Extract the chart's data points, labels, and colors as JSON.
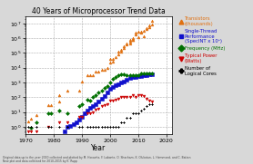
{
  "title": "40 Years of Microprocessor Trend Data",
  "xlabel": "Year",
  "xlim": [
    1970,
    2022
  ],
  "ylim_log": [
    0.3,
    30000000.0
  ],
  "xticks": [
    1970,
    1980,
    1990,
    2000,
    2010,
    2020
  ],
  "footnote1": "Original data up to the year 2010 collected and plotted by M. Horowitz, F. Labonte, O. Shacham, K. Olukotun, L. Hammond, and C. Batten",
  "footnote2": "New plot and data collected for 2010-2015 by K. Rupp",
  "bg_color": "#D8D8D8",
  "series": {
    "transistors": {
      "label": "Transistors\n(thousands)",
      "color": "#E07010",
      "marker": "^",
      "data_x": [
        1971,
        1972,
        1974,
        1978,
        1979,
        1982,
        1982,
        1985,
        1989,
        1990,
        1992,
        1993,
        1994,
        1995,
        1996,
        1997,
        1998,
        1999,
        2000,
        2000,
        2001,
        2001,
        2002,
        2003,
        2003,
        2004,
        2004,
        2005,
        2005,
        2006,
        2006,
        2007,
        2007,
        2007,
        2008,
        2008,
        2008,
        2009,
        2009,
        2010,
        2010,
        2011,
        2011,
        2012,
        2012,
        2013,
        2013,
        2014,
        2014,
        2015,
        2015
      ],
      "data_y": [
        2.3,
        3.5,
        6,
        29,
        29,
        55,
        134,
        275,
        275,
        1200,
        3100,
        3100,
        3100,
        5500,
        5500,
        7500,
        7500,
        9500,
        24000,
        42000,
        42000,
        25000,
        55000,
        125000,
        77000,
        125000,
        169000,
        228000,
        291000,
        376000,
        410000,
        582000,
        742000,
        410000,
        731000,
        820000,
        1000000,
        1900000,
        2300000,
        1170000,
        2600000,
        2600000,
        2300000,
        3100000,
        1400000,
        5000000,
        4310000,
        7200000,
        5560000,
        8000000,
        15000000
      ]
    },
    "singlethread": {
      "label": "Single-Thread\nPerformance\n(SpecINT x 10³)",
      "color": "#1010CC",
      "marker": "s",
      "data_x": [
        1978,
        1980,
        1982,
        1984,
        1985,
        1986,
        1987,
        1988,
        1989,
        1990,
        1991,
        1992,
        1993,
        1994,
        1995,
        1996,
        1997,
        1998,
        1999,
        2000,
        2001,
        2002,
        2003,
        2004,
        2005,
        2006,
        2007,
        2008,
        2009,
        2010,
        2011,
        2012,
        2013,
        2014,
        2015
      ],
      "data_y": [
        0.04,
        0.08,
        0.15,
        0.5,
        1,
        1.2,
        1.5,
        2,
        3,
        5,
        8,
        12,
        18,
        25,
        35,
        50,
        80,
        120,
        200,
        350,
        500,
        650,
        800,
        1000,
        1200,
        1500,
        2000,
        2200,
        2500,
        2700,
        2800,
        3000,
        3200,
        3400,
        3500
      ]
    },
    "frequency": {
      "label": "Frequency (MHz)",
      "color": "#007000",
      "marker": "D",
      "data_x": [
        1971,
        1972,
        1974,
        1978,
        1979,
        1982,
        1985,
        1989,
        1990,
        1992,
        1993,
        1994,
        1995,
        1996,
        1997,
        1998,
        1999,
        2000,
        2001,
        2002,
        2003,
        2004,
        2005,
        2006,
        2007,
        2008,
        2009,
        2010,
        2011,
        2012,
        2013,
        2014,
        2015
      ],
      "data_y": [
        0.108,
        0.8,
        2,
        8,
        8,
        12,
        8,
        25,
        33,
        66,
        60,
        100,
        133,
        200,
        300,
        450,
        600,
        1000,
        1700,
        2200,
        3060,
        3800,
        3800,
        3000,
        3000,
        3200,
        2930,
        3330,
        3900,
        3900,
        4000,
        4000,
        4200
      ]
    },
    "power": {
      "label": "Typical Power\n(Watts)",
      "color": "#CC0000",
      "marker": "v",
      "data_x": [
        1971,
        1972,
        1974,
        1978,
        1982,
        1985,
        1989,
        1990,
        1992,
        1993,
        1994,
        1995,
        1996,
        1997,
        1998,
        1999,
        2000,
        2001,
        2002,
        2003,
        2004,
        2005,
        2006,
        2007,
        2008,
        2009,
        2010,
        2011,
        2012,
        2013,
        2014,
        2015
      ],
      "data_y": [
        0.5,
        0.5,
        0.5,
        1,
        2,
        2,
        5,
        5,
        8,
        8,
        10,
        15,
        17,
        25,
        30,
        35,
        60,
        60,
        70,
        80,
        100,
        110,
        100,
        105,
        130,
        100,
        140,
        130,
        120,
        84,
        60,
        55
      ]
    },
    "cores": {
      "label": "Number of\nLogical Cores",
      "color": "#000000",
      "marker": "P",
      "data_x": [
        1971,
        1972,
        1974,
        1978,
        1979,
        1982,
        1985,
        1989,
        1990,
        1992,
        1993,
        1994,
        1995,
        1996,
        1997,
        1998,
        1999,
        2000,
        2001,
        2002,
        2003,
        2004,
        2005,
        2006,
        2007,
        2008,
        2009,
        2010,
        2011,
        2012,
        2013,
        2014,
        2015
      ],
      "data_y": [
        1,
        1,
        1,
        1,
        1,
        1,
        1,
        1,
        1,
        1,
        1,
        1,
        1,
        1,
        1,
        1,
        1,
        1,
        1,
        1,
        1,
        2,
        2,
        4,
        4,
        8,
        8,
        8,
        12,
        16,
        24,
        36,
        36
      ]
    }
  },
  "legend_items": [
    {
      "label": "Transistors\n(thousands)",
      "color": "#E07010",
      "marker": "^"
    },
    {
      "label": "Single-Thread\nPerformance\n(SpecINT x 10³)",
      "color": "#1010CC",
      "marker": "s"
    },
    {
      "label": "Frequency (MHz)",
      "color": "#007000",
      "marker": "D"
    },
    {
      "label": "Typical Power\n(Watts)",
      "color": "#CC0000",
      "marker": "v"
    },
    {
      "label": "Number of\nLogical Cores",
      "color": "#000000",
      "marker": "P"
    }
  ]
}
